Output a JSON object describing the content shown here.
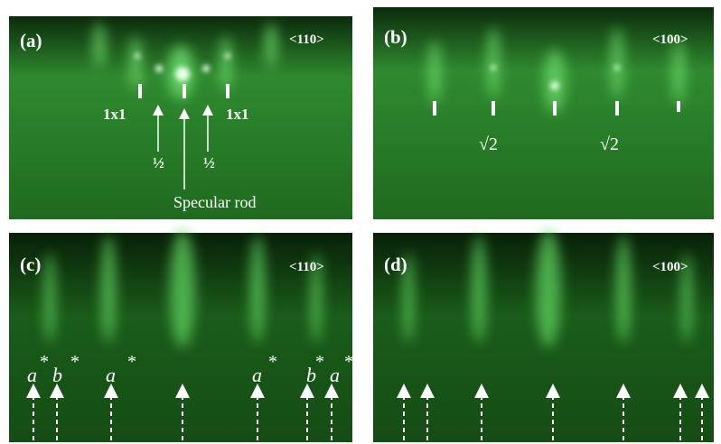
{
  "panels": [
    {
      "label": "(a)",
      "direction": "<110>",
      "annotations": [
        "1x1",
        "1x1",
        "½",
        "½",
        "Specular rod"
      ]
    },
    {
      "label": "(b)",
      "direction": "<100>",
      "annotations": [
        "√2",
        "√2"
      ]
    },
    {
      "label": "(c)",
      "direction": "<110>",
      "annotations": [
        {
          "letter": "a",
          "mark": "*"
        },
        {
          "letter": "b",
          "mark": "*"
        },
        {
          "letter": "a",
          "mark": "*"
        },
        {
          "letter": "a",
          "mark": "*"
        },
        {
          "letter": "b",
          "mark": "*"
        },
        {
          "letter": "a",
          "mark": "*"
        }
      ]
    },
    {
      "label": "(d)",
      "direction": "<100>"
    }
  ]
}
